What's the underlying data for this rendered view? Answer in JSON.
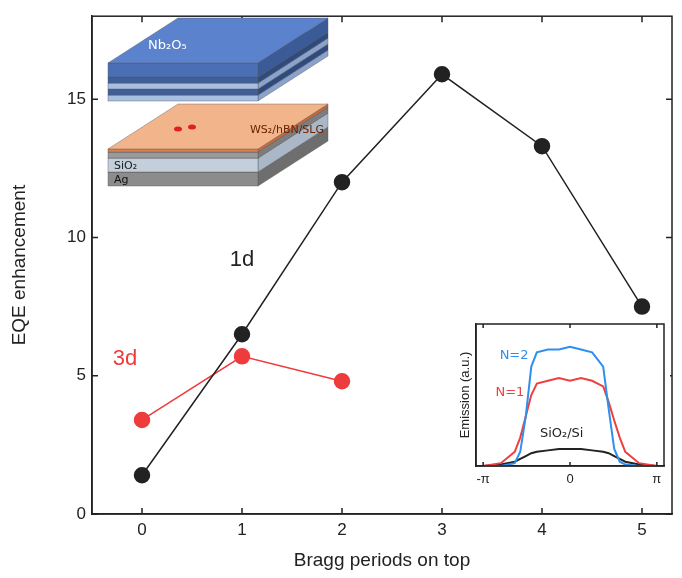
{
  "chart_data": [
    {
      "type": "line",
      "xlabel": "Bragg periods on top",
      "ylabel": "EQE enhancement",
      "x": [
        0,
        1,
        2,
        3,
        4,
        5
      ],
      "series": [
        {
          "name": "1d",
          "color": "#222222",
          "marker": "circle",
          "line_style": "solid",
          "values": [
            1.4,
            6.5,
            12.0,
            15.9,
            13.3,
            7.5
          ]
        },
        {
          "name": "3d",
          "color": "#ee3b3b",
          "marker": "circle",
          "line_style": "solid",
          "values": [
            3.4,
            5.7,
            4.8,
            null,
            null,
            null
          ]
        }
      ],
      "xlim": [
        -0.5,
        5.3
      ],
      "xticks": [
        0,
        1,
        2,
        3,
        4,
        5
      ],
      "ylim": [
        0,
        18
      ],
      "yticks": [
        0,
        5,
        10,
        15
      ],
      "grid": false
    },
    {
      "type": "line",
      "ylabel": "Emission (a.u.)",
      "x": [
        -3.14,
        -2.5,
        -2.0,
        -1.8,
        -1.6,
        -1.4,
        -1.2,
        -0.8,
        -0.4,
        0,
        0.4,
        0.8,
        1.2,
        1.4,
        1.6,
        1.8,
        2.0,
        2.5,
        3.14
      ],
      "series": [
        {
          "name": "N=2",
          "color": "#2f8fef",
          "marker": "none",
          "line_style": "solid",
          "values": [
            0,
            0,
            0.02,
            0.1,
            0.35,
            0.7,
            0.8,
            0.82,
            0.82,
            0.84,
            0.82,
            0.8,
            0.7,
            0.4,
            0.12,
            0.03,
            0.01,
            0,
            0
          ]
        },
        {
          "name": "N=1",
          "color": "#ef4040",
          "marker": "none",
          "line_style": "solid",
          "values": [
            0,
            0.02,
            0.1,
            0.2,
            0.35,
            0.5,
            0.58,
            0.6,
            0.62,
            0.6,
            0.62,
            0.6,
            0.56,
            0.45,
            0.32,
            0.2,
            0.1,
            0.02,
            0
          ]
        },
        {
          "name": "SiO₂/Si",
          "color": "#222222",
          "marker": "none",
          "line_style": "solid",
          "values": [
            0,
            0.01,
            0.03,
            0.05,
            0.07,
            0.09,
            0.1,
            0.11,
            0.12,
            0.12,
            0.12,
            0.11,
            0.1,
            0.09,
            0.07,
            0.05,
            0.03,
            0.01,
            0
          ]
        }
      ],
      "xlim": [
        -3.4,
        3.4
      ],
      "xticks": [
        {
          "value": -3.14159,
          "label": "-π"
        },
        0,
        {
          "value": 3.14159,
          "label": "π"
        }
      ],
      "ylim": [
        0,
        1
      ],
      "tick_labels": "x",
      "grid": false
    }
  ],
  "schematic": {
    "labels": {
      "top": "Nb₂O₅",
      "active": "WS₂/hBN/SLG",
      "spacer": "SiO₂",
      "mirror": "Ag"
    }
  }
}
